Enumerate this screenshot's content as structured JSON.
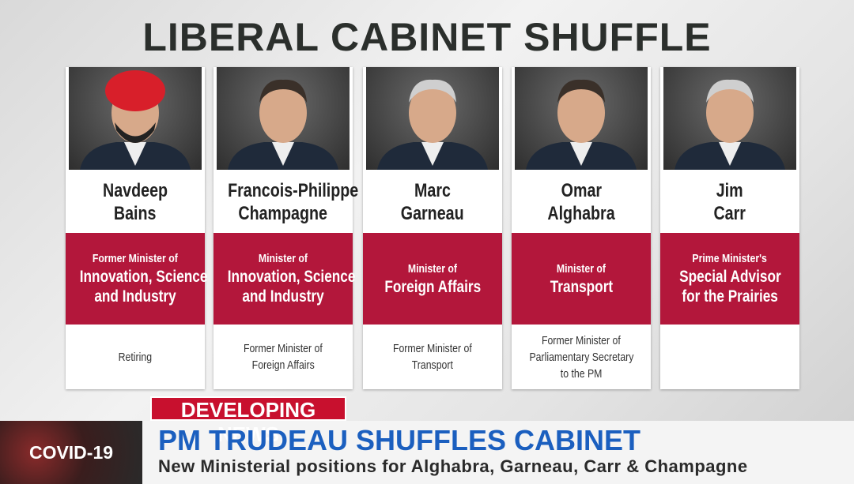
{
  "title": "LIBERAL CABINET SHUFFLE",
  "cards": [
    {
      "name": [
        "Navdeep",
        "Bains"
      ],
      "role": [
        "Former Minister of",
        "Innovation, Science",
        "and Industry"
      ],
      "note": [
        "Retiring"
      ]
    },
    {
      "name": [
        "Francois-Philippe",
        "Champagne"
      ],
      "role": [
        "Minister of",
        "Innovation, Science",
        "and Industry"
      ],
      "note": [
        "Former Minister of",
        "Foreign Affairs"
      ]
    },
    {
      "name": [
        "Marc",
        "Garneau"
      ],
      "role": [
        "Minister of",
        "Foreign Affairs"
      ],
      "note": [
        "Former Minister of",
        "Transport"
      ]
    },
    {
      "name": [
        "Omar",
        "Alghabra"
      ],
      "role": [
        "Minister of",
        "Transport"
      ],
      "note": [
        "Former Minister of",
        "Parliamentary Secretary",
        "to the PM"
      ]
    },
    {
      "name": [
        "Jim",
        "Carr"
      ],
      "role": [
        "Prime Minister's",
        "Special Advisor",
        "for the Prairies"
      ],
      "note": []
    }
  ],
  "ticker": {
    "label": "DEVELOPING NEWS",
    "headline": "PM TRUDEAU SHUFFLES CABINET",
    "subline": "New Ministerial positions for Alghabra, Garneau, Carr & Champagne",
    "badge": "COVID-19"
  }
}
